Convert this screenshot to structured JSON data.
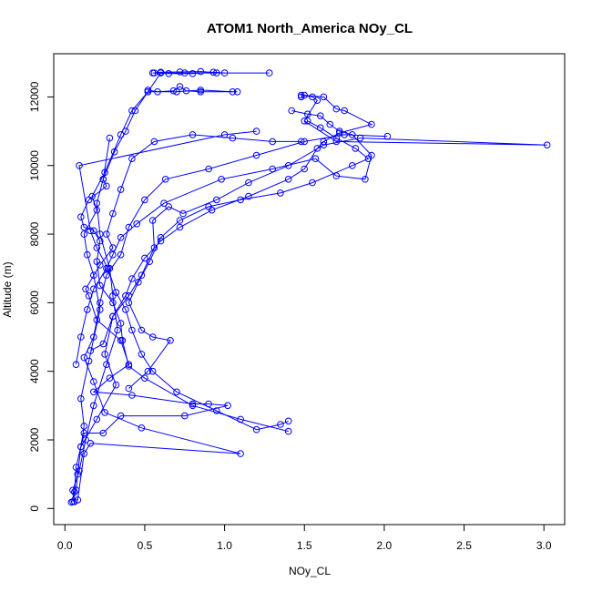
{
  "chart_data": {
    "type": "scatter",
    "title": "ATOM1 North_America NOy_CL",
    "xlabel": "NOy_CL",
    "ylabel": "Altitude (m)",
    "xlim": [
      -0.07,
      3.13
    ],
    "ylim": [
      -470,
      13260
    ],
    "x_ticks": [
      0.0,
      0.5,
      1.0,
      1.5,
      2.0,
      2.5,
      3.0
    ],
    "x_tick_labels": [
      "0.0",
      "0.5",
      "1.0",
      "1.5",
      "2.0",
      "2.5",
      "3.0"
    ],
    "y_ticks": [
      0,
      2000,
      4000,
      6000,
      8000,
      10000,
      12000
    ],
    "y_tick_labels": [
      "0",
      "2000",
      "4000",
      "6000",
      "8000",
      "10000",
      "12000"
    ],
    "marker": "open-circle",
    "colors": {
      "series": "#0000ff",
      "axes": "#000000",
      "background": "#ffffff"
    },
    "grid": false,
    "legend": "none",
    "series": [
      {
        "points": [
          [
            0.05,
            200
          ],
          [
            0.07,
            540
          ],
          [
            0.08,
            1000
          ],
          [
            0.1,
            1800
          ],
          [
            0.12,
            2400
          ],
          [
            0.1,
            3200
          ],
          [
            0.15,
            4300
          ],
          [
            0.22,
            5800
          ],
          [
            0.18,
            6800
          ],
          [
            0.14,
            7400
          ],
          [
            0.12,
            8000
          ],
          [
            0.2,
            8700
          ],
          [
            0.17,
            9100
          ],
          [
            0.25,
            9800
          ],
          [
            0.35,
            10900
          ],
          [
            0.42,
            11600
          ],
          [
            0.52,
            12150
          ],
          [
            0.6,
            12700
          ],
          [
            0.75,
            12700
          ],
          [
            0.95,
            12700
          ],
          [
            1.28,
            12700
          ]
        ]
      },
      {
        "points": [
          [
            0.06,
            200
          ],
          [
            0.05,
            530
          ],
          [
            0.09,
            1100
          ],
          [
            0.13,
            2000
          ],
          [
            0.18,
            3000
          ],
          [
            0.26,
            4200
          ],
          [
            0.33,
            5200
          ],
          [
            0.3,
            6200
          ],
          [
            0.28,
            7000
          ],
          [
            0.22,
            8000
          ],
          [
            0.2,
            8900
          ],
          [
            0.24,
            9600
          ],
          [
            0.31,
            10400
          ],
          [
            0.38,
            11000
          ],
          [
            0.44,
            11600
          ],
          [
            0.52,
            12150
          ],
          [
            0.7,
            12150
          ],
          [
            0.85,
            12200
          ],
          [
            1.05,
            12150
          ]
        ]
      },
      {
        "points": [
          [
            0.04,
            180
          ],
          [
            0.06,
            480
          ],
          [
            0.07,
            1200
          ],
          [
            0.12,
            2200
          ],
          [
            0.24,
            2200
          ],
          [
            0.35,
            2700
          ],
          [
            0.75,
            2700
          ],
          [
            1.02,
            3000
          ],
          [
            0.9,
            3050
          ],
          [
            0.8,
            3050
          ],
          [
            0.42,
            3300
          ],
          [
            0.18,
            3400
          ],
          [
            0.28,
            3800
          ],
          [
            0.4,
            4200
          ],
          [
            0.35,
            4900
          ],
          [
            0.2,
            5500
          ],
          [
            0.15,
            6200
          ],
          [
            0.13,
            6400
          ],
          [
            0.22,
            7100
          ],
          [
            0.3,
            7600
          ],
          [
            0.26,
            8000
          ],
          [
            0.3,
            8600
          ],
          [
            0.35,
            9300
          ],
          [
            0.42,
            10200
          ],
          [
            0.56,
            10700
          ],
          [
            0.8,
            10900
          ],
          [
            1.05,
            10800
          ],
          [
            1.3,
            10700
          ],
          [
            1.48,
            10700
          ]
        ]
      },
      {
        "points": [
          [
            0.08,
            250
          ],
          [
            0.12,
            1600
          ],
          [
            0.16,
            1900
          ],
          [
            1.1,
            1600
          ],
          [
            0.48,
            2350
          ],
          [
            0.25,
            2800
          ],
          [
            0.18,
            3700
          ],
          [
            0.12,
            4400
          ],
          [
            0.18,
            5000
          ],
          [
            0.22,
            6000
          ],
          [
            0.26,
            6800
          ],
          [
            0.35,
            7400
          ],
          [
            0.4,
            8200
          ],
          [
            0.5,
            9000
          ],
          [
            0.63,
            9600
          ],
          [
            0.9,
            9900
          ],
          [
            1.2,
            10300
          ],
          [
            1.5,
            10700
          ],
          [
            1.75,
            10900
          ],
          [
            2.02,
            10850
          ]
        ]
      },
      {
        "points": [
          [
            0.1,
            1800
          ],
          [
            0.2,
            2600
          ],
          [
            0.32,
            3600
          ],
          [
            0.25,
            4500
          ],
          [
            0.3,
            5600
          ],
          [
            0.4,
            6200
          ],
          [
            0.48,
            6800
          ],
          [
            0.56,
            7600
          ],
          [
            0.55,
            8400
          ],
          [
            0.65,
            8800
          ],
          [
            0.74,
            8600
          ],
          [
            0.95,
            9000
          ],
          [
            1.15,
            9500
          ],
          [
            1.4,
            10000
          ],
          [
            1.62,
            10600
          ],
          [
            1.85,
            10800
          ],
          [
            3.02,
            10600
          ],
          [
            1.7,
            10700
          ],
          [
            1.5,
            11300
          ],
          [
            1.58,
            11900
          ],
          [
            1.55,
            12000
          ],
          [
            1.48,
            12050
          ]
        ]
      },
      {
        "points": [
          [
            0.07,
            4200
          ],
          [
            0.1,
            5000
          ],
          [
            0.14,
            5800
          ],
          [
            0.18,
            6400
          ],
          [
            0.26,
            7000
          ],
          [
            0.3,
            7400
          ],
          [
            0.35,
            7900
          ],
          [
            0.45,
            8300
          ],
          [
            0.62,
            8900
          ],
          [
            0.98,
            9600
          ],
          [
            1.3,
            9900
          ],
          [
            1.57,
            10200
          ],
          [
            1.7,
            9700
          ],
          [
            1.88,
            9600
          ],
          [
            1.92,
            10300
          ],
          [
            1.8,
            10900
          ],
          [
            1.72,
            11000
          ],
          [
            1.66,
            11200
          ],
          [
            1.6,
            11450
          ],
          [
            1.52,
            11500
          ],
          [
            1.42,
            11600
          ]
        ]
      },
      {
        "points": [
          [
            0.16,
            4600
          ],
          [
            0.24,
            4800
          ],
          [
            0.3,
            5600
          ],
          [
            0.38,
            6200
          ],
          [
            0.42,
            6700
          ],
          [
            0.5,
            7300
          ],
          [
            0.6,
            7800
          ],
          [
            0.72,
            8200
          ],
          [
            0.92,
            8700
          ],
          [
            1.15,
            9100
          ],
          [
            1.4,
            9600
          ],
          [
            1.5,
            9900
          ],
          [
            1.58,
            10500
          ],
          [
            1.62,
            10700
          ],
          [
            1.72,
            10950
          ],
          [
            1.92,
            11200
          ],
          [
            1.75,
            11600
          ],
          [
            1.7,
            11650
          ],
          [
            1.62,
            12000
          ],
          [
            1.5,
            12050
          ],
          [
            1.48,
            12000
          ]
        ]
      },
      {
        "points": [
          [
            0.4,
            3500
          ],
          [
            0.52,
            4000
          ],
          [
            0.66,
            4900
          ],
          [
            0.55,
            5000
          ],
          [
            0.48,
            5200
          ],
          [
            0.4,
            6000
          ],
          [
            0.46,
            6600
          ],
          [
            0.53,
            7200
          ],
          [
            0.6,
            7900
          ],
          [
            0.72,
            8400
          ],
          [
            0.9,
            8800
          ],
          [
            1.1,
            9000
          ],
          [
            1.35,
            9200
          ],
          [
            1.55,
            9500
          ],
          [
            1.8,
            10000
          ],
          [
            1.9,
            10200
          ],
          [
            1.82,
            10500
          ],
          [
            1.7,
            10800
          ],
          [
            1.6,
            11100
          ],
          [
            1.52,
            11300
          ]
        ]
      },
      {
        "points": [
          [
            0.55,
            12700
          ],
          [
            0.6,
            12720
          ],
          [
            0.72,
            12730
          ],
          [
            0.85,
            12740
          ],
          [
            1.0,
            12700
          ],
          [
            0.93,
            12720
          ],
          [
            0.8,
            12680
          ],
          [
            0.65,
            12680
          ],
          [
            0.56,
            12700
          ]
        ]
      },
      {
        "points": [
          [
            0.52,
            12200
          ],
          [
            0.58,
            12150
          ],
          [
            0.68,
            12180
          ],
          [
            0.72,
            12300
          ],
          [
            0.76,
            12180
          ],
          [
            0.85,
            12150
          ],
          [
            1.08,
            12150
          ]
        ]
      },
      {
        "points": [
          [
            1.4,
            2550
          ],
          [
            1.35,
            2450
          ],
          [
            1.2,
            2300
          ],
          [
            0.95,
            2850
          ],
          [
            0.7,
            3400
          ],
          [
            0.55,
            4000
          ],
          [
            0.48,
            4500
          ],
          [
            0.42,
            5200
          ],
          [
            0.38,
            5800
          ],
          [
            0.32,
            6300
          ],
          [
            0.27,
            7000
          ],
          [
            0.2,
            7600
          ],
          [
            0.16,
            8100
          ],
          [
            0.09,
            10000
          ],
          [
            1.0,
            10900
          ],
          [
            1.2,
            11000
          ]
        ]
      },
      {
        "points": [
          [
            1.4,
            2250
          ],
          [
            1.1,
            2600
          ],
          [
            0.8,
            3000
          ],
          [
            0.5,
            3800
          ],
          [
            0.4,
            4150
          ],
          [
            0.36,
            4900
          ],
          [
            0.35,
            5400
          ],
          [
            0.3,
            6000
          ],
          [
            0.22,
            6500
          ],
          [
            0.2,
            7200
          ],
          [
            0.22,
            7800
          ],
          [
            0.18,
            8100
          ],
          [
            0.12,
            8200
          ],
          [
            0.1,
            8500
          ],
          [
            0.15,
            9000
          ],
          [
            0.26,
            9400
          ],
          [
            0.24,
            9600
          ],
          [
            0.28,
            10800
          ]
        ]
      }
    ]
  }
}
